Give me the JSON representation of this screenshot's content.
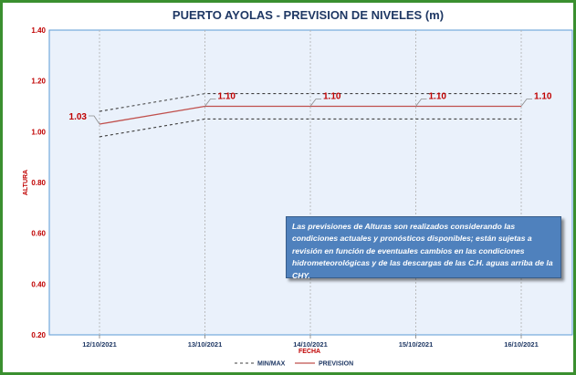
{
  "chart_data": {
    "type": "line",
    "title": "PUERTO AYOLAS - PREVISION DE NIVELES (m)",
    "xlabel": "FECHA",
    "ylabel": "ALTURA",
    "categories": [
      "12/10/2021",
      "13/10/2021",
      "14/10/2021",
      "15/10/2021",
      "16/10/2021"
    ],
    "ylim": [
      0.2,
      1.4
    ],
    "yticks": [
      "0.20",
      "0.40",
      "0.60",
      "0.80",
      "1.00",
      "1.20",
      "1.40"
    ],
    "grid": "vertical-dashed",
    "series": [
      {
        "name": "MIN/MAX",
        "style": "dashed",
        "color": "#404040",
        "values": [
          0.98,
          1.05,
          1.05,
          1.05,
          1.05
        ]
      },
      {
        "name": "MIN/MAX",
        "style": "dashed",
        "color": "#404040",
        "values": [
          1.08,
          1.15,
          1.15,
          1.15,
          1.15
        ]
      },
      {
        "name": "PREVISION",
        "style": "solid",
        "color": "#c0504d",
        "values": [
          1.03,
          1.1,
          1.1,
          1.1,
          1.1
        ]
      }
    ],
    "data_labels": [
      "1.03",
      "1.10",
      "1.10",
      "1.10",
      "1.10"
    ],
    "legend": {
      "position": "bottom",
      "items": [
        "MIN/MAX",
        "PREVISION"
      ]
    },
    "plot_background": "#eaf1fb",
    "plot_border": "#5b9bd5",
    "frame_color": "#3a8f2f"
  },
  "note": "Las previsiones de Alturas son realizados considerando las condiciones actuales y pronósticos disponibles;  están sujetas a revisión en función de eventuales cambios en las condiciones hidrometeorológicas y de las descargas de las C.H. aguas arriba de la CHY."
}
